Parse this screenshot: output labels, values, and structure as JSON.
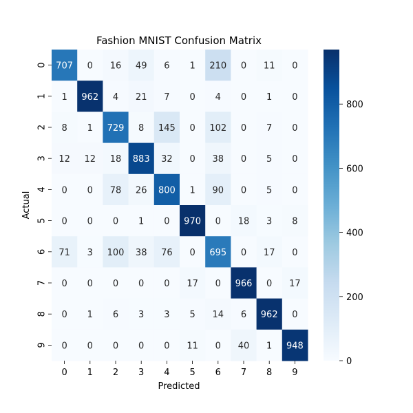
{
  "chart_data": {
    "type": "heatmap",
    "title": "Fashion MNIST Confusion Matrix",
    "xlabel": "Predicted",
    "ylabel": "Actual",
    "x_categories": [
      "0",
      "1",
      "2",
      "3",
      "4",
      "5",
      "6",
      "7",
      "8",
      "9"
    ],
    "y_categories": [
      "0",
      "1",
      "2",
      "3",
      "4",
      "5",
      "6",
      "7",
      "8",
      "9"
    ],
    "values": [
      [
        707,
        0,
        16,
        49,
        6,
        1,
        210,
        0,
        11,
        0
      ],
      [
        1,
        962,
        4,
        21,
        7,
        0,
        4,
        0,
        1,
        0
      ],
      [
        8,
        1,
        729,
        8,
        145,
        0,
        102,
        0,
        7,
        0
      ],
      [
        12,
        12,
        18,
        883,
        32,
        0,
        38,
        0,
        5,
        0
      ],
      [
        0,
        0,
        78,
        26,
        800,
        1,
        90,
        0,
        5,
        0
      ],
      [
        0,
        0,
        0,
        1,
        0,
        970,
        0,
        18,
        3,
        8
      ],
      [
        71,
        3,
        100,
        38,
        76,
        0,
        695,
        0,
        17,
        0
      ],
      [
        0,
        0,
        0,
        0,
        0,
        17,
        0,
        966,
        0,
        17
      ],
      [
        0,
        1,
        6,
        3,
        3,
        5,
        14,
        6,
        962,
        0
      ],
      [
        0,
        0,
        0,
        0,
        0,
        11,
        0,
        40,
        1,
        948
      ]
    ],
    "colormap": "Blues",
    "vmin": 0,
    "vmax": 970,
    "colorbar_ticks": [
      0,
      200,
      400,
      600,
      800
    ],
    "grid": false
  }
}
